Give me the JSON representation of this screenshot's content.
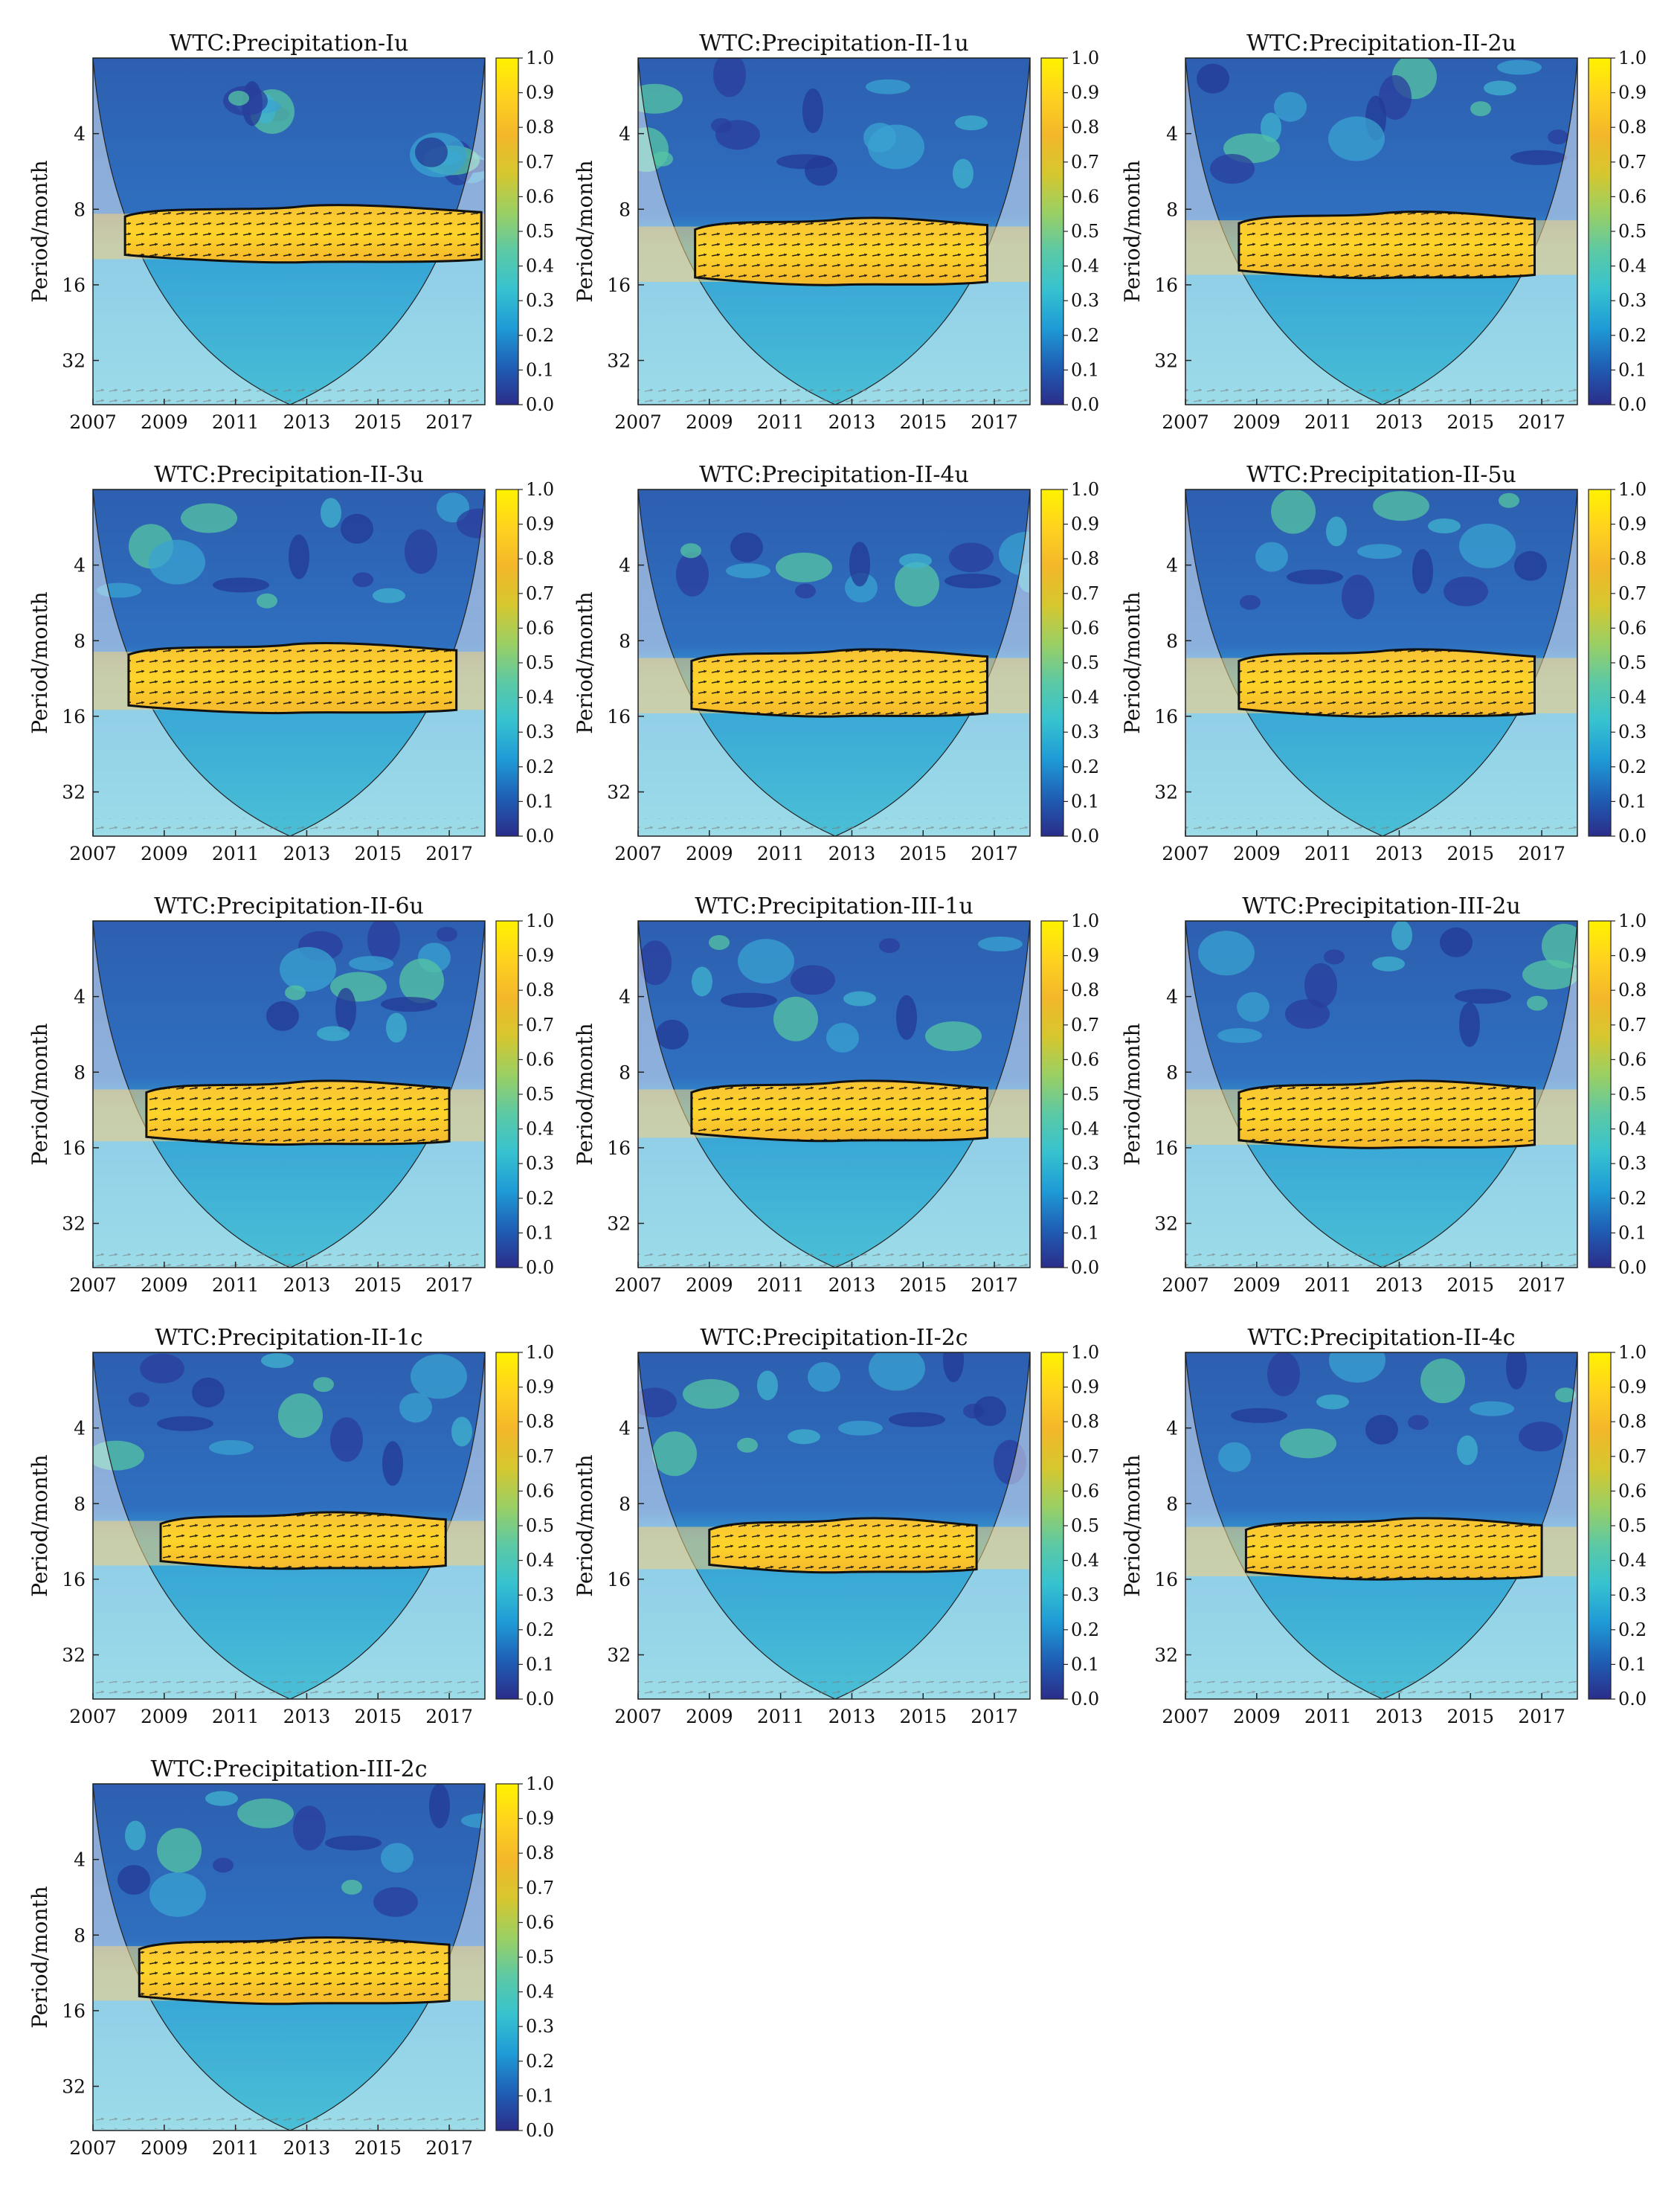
{
  "figure": {
    "colorbar": {
      "min": 0.0,
      "max": 1.0,
      "ticks": [
        "1.0",
        "0.9",
        "0.8",
        "0.7",
        "0.6",
        "0.5",
        "0.4",
        "0.3",
        "0.2",
        "0.1",
        "0.0"
      ],
      "colormap": [
        "#2b2d8a",
        "#1f5fb5",
        "#1f9bd6",
        "#37c2d0",
        "#5cc9a4",
        "#9bcf63",
        "#d6c72f",
        "#f3b72a",
        "#ffd21f",
        "#fff200"
      ]
    },
    "shared_axes": {
      "ylabel": "Period/month",
      "yticks": [
        "4",
        "8",
        "16",
        "32"
      ],
      "xticks": [
        "2007",
        "2009",
        "2011",
        "2013",
        "2015",
        "2017"
      ]
    }
  },
  "chart_data": [
    {
      "type": "heatmap",
      "title": "WTC:Precipitation-Iu",
      "band": {
        "period_low": 8,
        "period_high": 13,
        "x_start": 2007.9,
        "x_end": 2017.9
      },
      "xlabel": "",
      "ylabel": "Period/month",
      "xlim": [
        2007,
        2018
      ],
      "ylim": [
        2,
        48
      ],
      "yscale": "log2",
      "cbar_range": [
        0,
        1
      ]
    },
    {
      "type": "heatmap",
      "title": "WTC:Precipitation-II-1u",
      "band": {
        "period_low": 9,
        "period_high": 16,
        "x_start": 2008.6,
        "x_end": 2016.8
      },
      "xlabel": "",
      "ylabel": "Period/month",
      "xlim": [
        2007,
        2018
      ],
      "ylim": [
        2,
        48
      ],
      "yscale": "log2",
      "cbar_range": [
        0,
        1
      ]
    },
    {
      "type": "heatmap",
      "title": "WTC:Precipitation-II-2u",
      "band": {
        "period_low": 8.5,
        "period_high": 15,
        "x_start": 2008.5,
        "x_end": 2016.8
      },
      "xlabel": "",
      "ylabel": "Period/month",
      "xlim": [
        2007,
        2018
      ],
      "ylim": [
        2,
        48
      ],
      "yscale": "log2",
      "cbar_range": [
        0,
        1
      ]
    },
    {
      "type": "heatmap",
      "title": "WTC:Precipitation-II-3u",
      "band": {
        "period_low": 8.5,
        "period_high": 15.5,
        "x_start": 2008.0,
        "x_end": 2017.2
      },
      "xlabel": "",
      "ylabel": "Period/month",
      "xlim": [
        2007,
        2018
      ],
      "ylim": [
        2,
        48
      ],
      "yscale": "log2",
      "cbar_range": [
        0,
        1
      ]
    },
    {
      "type": "heatmap",
      "title": "WTC:Precipitation-II-4u",
      "band": {
        "period_low": 9,
        "period_high": 16,
        "x_start": 2008.5,
        "x_end": 2016.8
      },
      "xlabel": "",
      "ylabel": "Period/month",
      "xlim": [
        2007,
        2018
      ],
      "ylim": [
        2,
        48
      ],
      "yscale": "log2",
      "cbar_range": [
        0,
        1
      ]
    },
    {
      "type": "heatmap",
      "title": "WTC:Precipitation-II-5u",
      "band": {
        "period_low": 9,
        "period_high": 16,
        "x_start": 2008.5,
        "x_end": 2016.8
      },
      "xlabel": "",
      "ylabel": "Period/month",
      "xlim": [
        2007,
        2018
      ],
      "ylim": [
        2,
        48
      ],
      "yscale": "log2",
      "cbar_range": [
        0,
        1
      ]
    },
    {
      "type": "heatmap",
      "title": "WTC:Precipitation-II-6u",
      "band": {
        "period_low": 9,
        "period_high": 15.5,
        "x_start": 2008.5,
        "x_end": 2017.0
      },
      "xlabel": "",
      "ylabel": "Period/month",
      "xlim": [
        2007,
        2018
      ],
      "ylim": [
        2,
        48
      ],
      "yscale": "log2",
      "cbar_range": [
        0,
        1
      ]
    },
    {
      "type": "heatmap",
      "title": "WTC:Precipitation-III-1u",
      "band": {
        "period_low": 9,
        "period_high": 15,
        "x_start": 2008.5,
        "x_end": 2016.8
      },
      "xlabel": "",
      "ylabel": "Period/month",
      "xlim": [
        2007,
        2018
      ],
      "ylim": [
        2,
        48
      ],
      "yscale": "log2",
      "cbar_range": [
        0,
        1
      ]
    },
    {
      "type": "heatmap",
      "title": "WTC:Precipitation-III-2u",
      "band": {
        "period_low": 9,
        "period_high": 16,
        "x_start": 2008.5,
        "x_end": 2016.8
      },
      "xlabel": "",
      "ylabel": "Period/month",
      "xlim": [
        2007,
        2018
      ],
      "ylim": [
        2,
        48
      ],
      "yscale": "log2",
      "cbar_range": [
        0,
        1
      ]
    },
    {
      "type": "heatmap",
      "title": "WTC:Precipitation-II-1c",
      "band": {
        "period_low": 9,
        "period_high": 14.5,
        "x_start": 2008.9,
        "x_end": 2016.9
      },
      "xlabel": "",
      "ylabel": "Period/month",
      "xlim": [
        2007,
        2018
      ],
      "ylim": [
        2,
        48
      ],
      "yscale": "log2",
      "cbar_range": [
        0,
        1
      ]
    },
    {
      "type": "heatmap",
      "title": "WTC:Precipitation-II-2c",
      "band": {
        "period_low": 9.5,
        "period_high": 15,
        "x_start": 2009.0,
        "x_end": 2016.5
      },
      "xlabel": "",
      "ylabel": "Period/month",
      "xlim": [
        2007,
        2018
      ],
      "ylim": [
        2,
        48
      ],
      "yscale": "log2",
      "cbar_range": [
        0,
        1
      ]
    },
    {
      "type": "heatmap",
      "title": "WTC:Precipitation-II-4c",
      "band": {
        "period_low": 9.5,
        "period_high": 16,
        "x_start": 2008.7,
        "x_end": 2017.0
      },
      "xlabel": "",
      "ylabel": "Period/month",
      "xlim": [
        2007,
        2018
      ],
      "ylim": [
        2,
        48
      ],
      "yscale": "log2",
      "cbar_range": [
        0,
        1
      ]
    },
    {
      "type": "heatmap",
      "title": "WTC:Precipitation-III-2c",
      "band": {
        "period_low": 8.5,
        "period_high": 15,
        "x_start": 2008.3,
        "x_end": 2017.0
      },
      "xlabel": "",
      "ylabel": "Period/month",
      "xlim": [
        2007,
        2018
      ],
      "ylim": [
        2,
        48
      ],
      "yscale": "log2",
      "cbar_range": [
        0,
        1
      ]
    }
  ]
}
